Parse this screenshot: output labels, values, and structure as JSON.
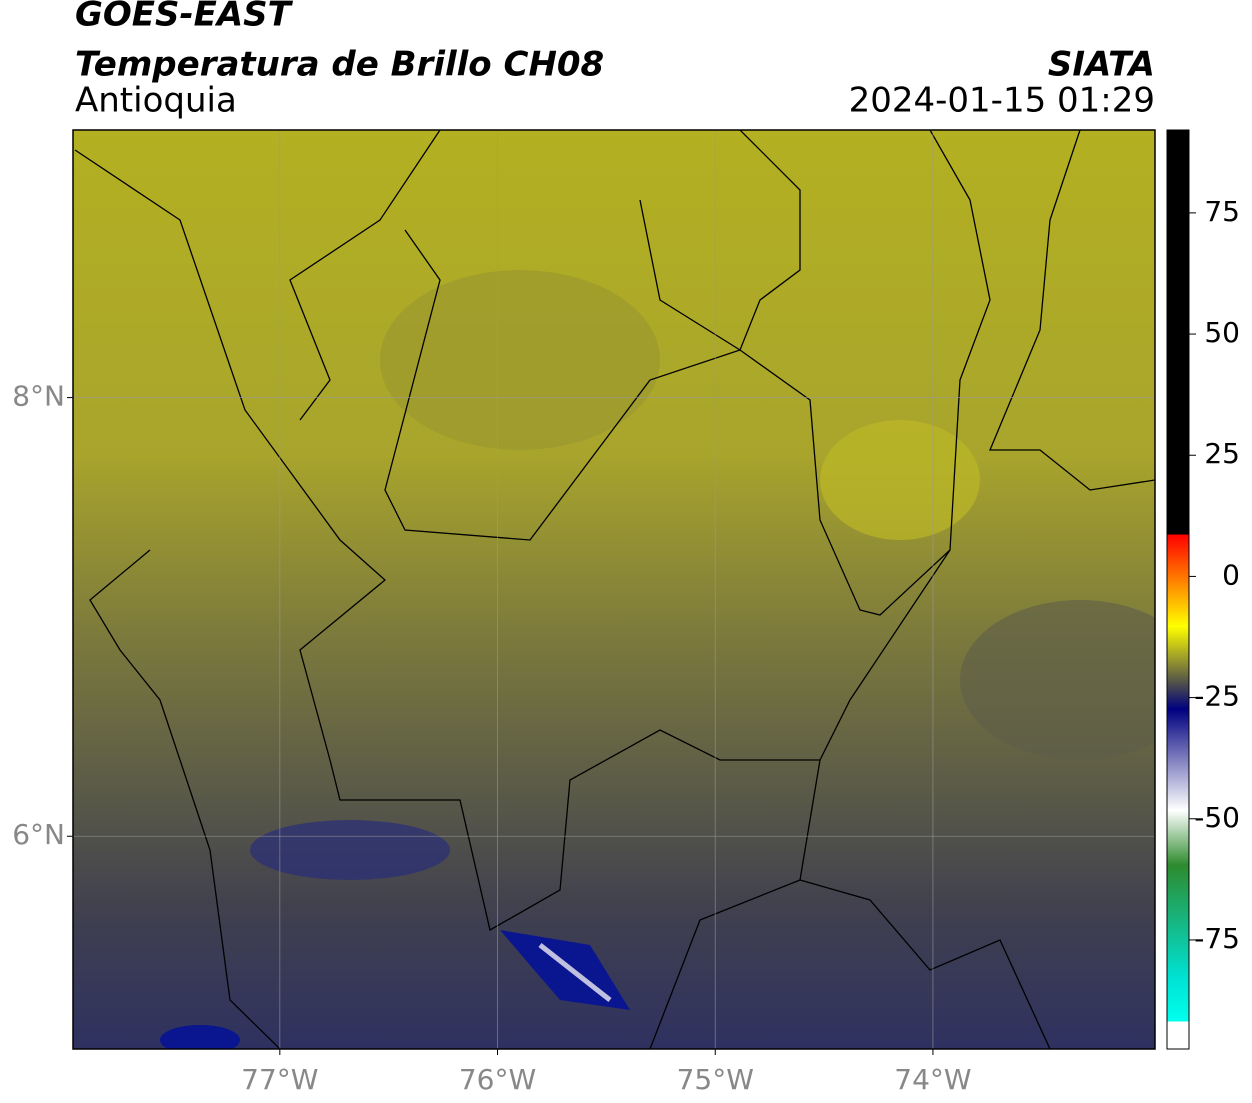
{
  "header": {
    "title": "GOES-EAST",
    "subtitle": "Temperatura de Brillo CH08",
    "region": "Antioquia",
    "source": "SIATA",
    "datetime": "2024-01-15 01:29"
  },
  "map": {
    "xlim": [
      -77.95,
      -72.98
    ],
    "ylim": [
      5.03,
      9.22
    ],
    "xticks": [
      {
        "value": -77,
        "label": "77°W"
      },
      {
        "value": -76,
        "label": "76°W"
      },
      {
        "value": -75,
        "label": "75°W"
      },
      {
        "value": -74,
        "label": "74°W"
      }
    ],
    "yticks": [
      {
        "value": 6,
        "label": "6°N"
      },
      {
        "value": 8,
        "label": "8°N"
      }
    ],
    "grid": true
  },
  "colorbar": {
    "lim": [
      -97.5,
      92.1
    ],
    "ticks": [
      75,
      50,
      25,
      0,
      -25,
      -50,
      -75
    ]
  }
}
